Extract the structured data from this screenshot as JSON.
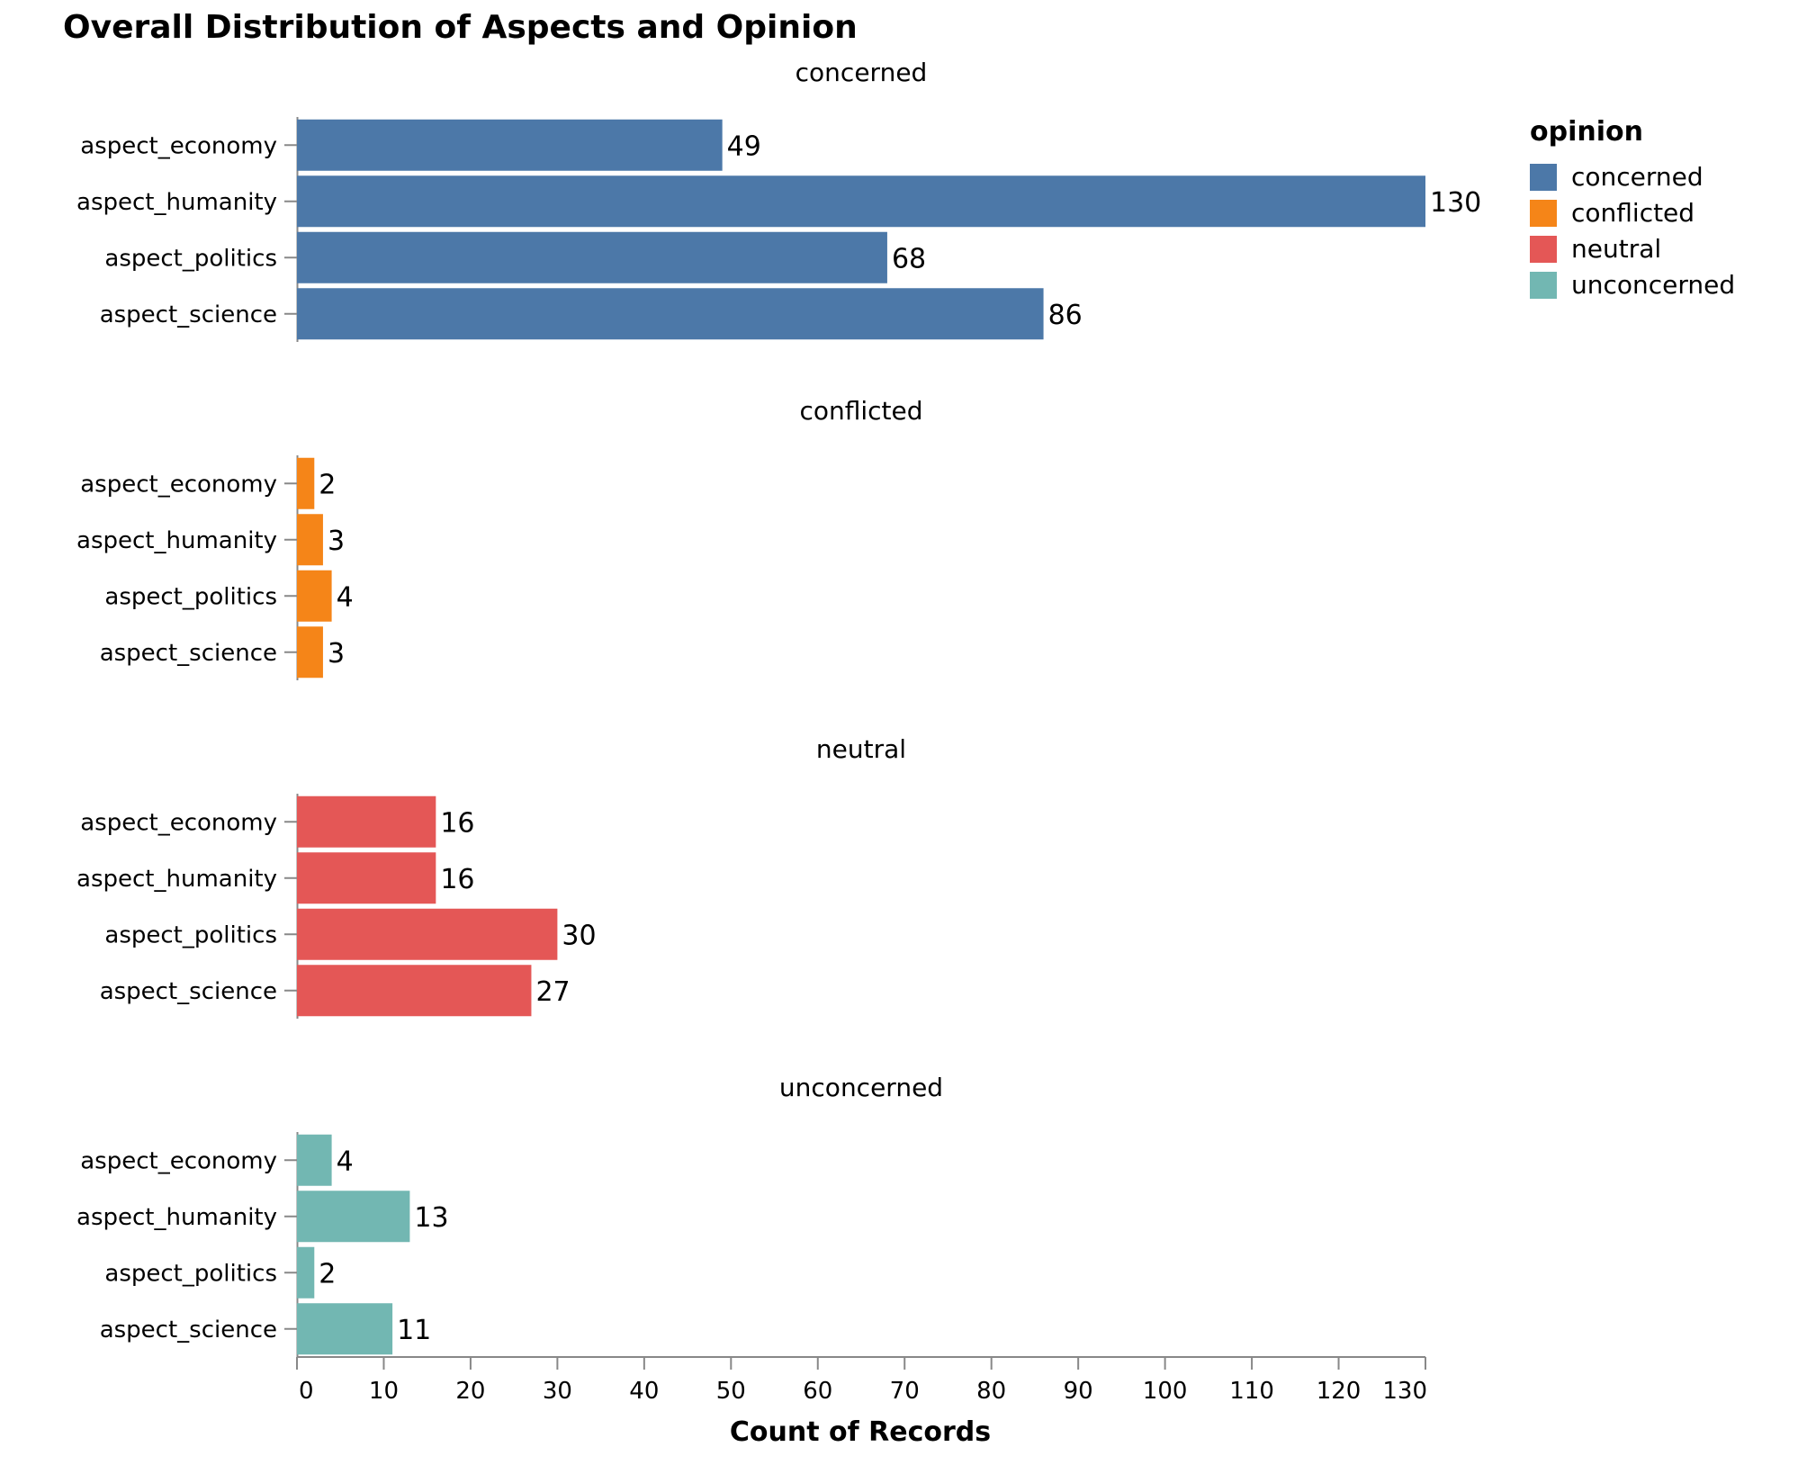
{
  "chart_data": {
    "type": "bar",
    "title": "Overall Distribution of Aspects and Opinion",
    "xlabel": "Count of Records",
    "ylabel": "",
    "xlim": [
      0,
      130
    ],
    "x_ticks": [
      0,
      10,
      20,
      30,
      40,
      50,
      60,
      70,
      80,
      90,
      100,
      110,
      120,
      130
    ],
    "categories": [
      "aspect_economy",
      "aspect_humanity",
      "aspect_politics",
      "aspect_science"
    ],
    "facet_by": "opinion",
    "series": [
      {
        "name": "concerned",
        "color": "#4c78a8",
        "values": [
          49,
          130,
          68,
          86
        ]
      },
      {
        "name": "conflicted",
        "color": "#f58518",
        "values": [
          2,
          3,
          4,
          3
        ]
      },
      {
        "name": "neutral",
        "color": "#e45756",
        "values": [
          16,
          16,
          30,
          27
        ]
      },
      {
        "name": "unconcerned",
        "color": "#72b7b2",
        "values": [
          4,
          13,
          2,
          11
        ]
      }
    ],
    "legend": {
      "title": "opinion",
      "position": "top-right",
      "entries": [
        "concerned",
        "conflicted",
        "neutral",
        "unconcerned"
      ]
    },
    "grid": false
  }
}
